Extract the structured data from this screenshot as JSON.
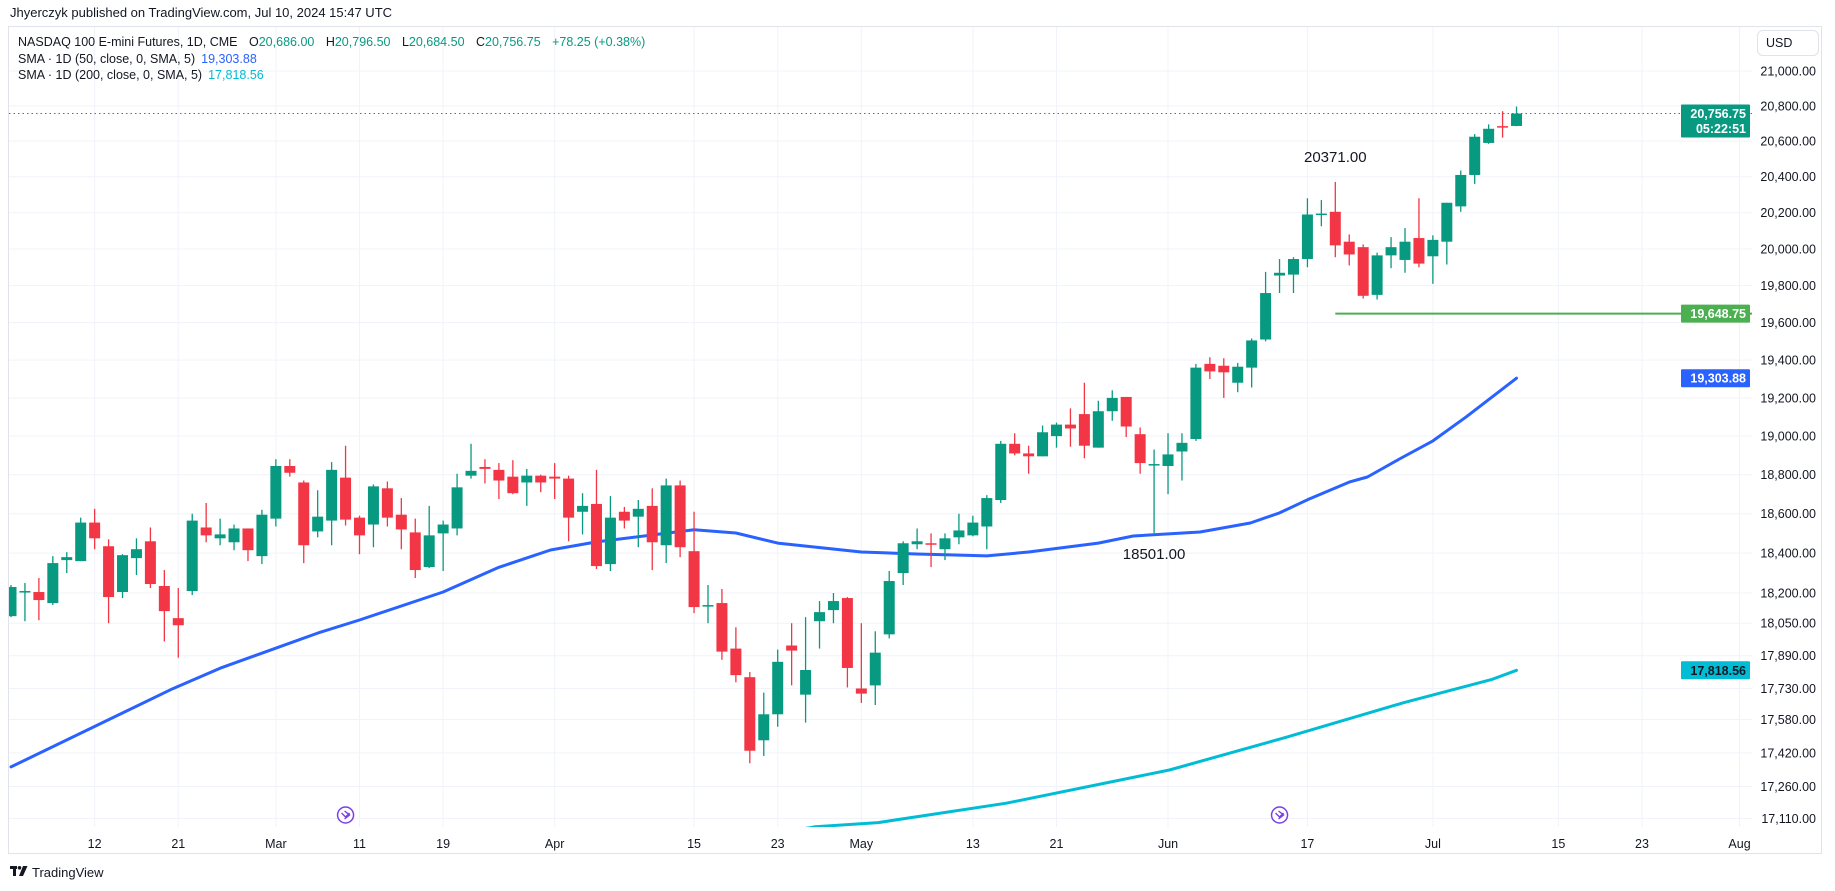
{
  "header": {
    "publisher": "Jhyerczyk published on TradingView.com, Jul 10, 2024 15:47 UTC"
  },
  "legend": {
    "symbol": "NASDAQ 100 E-mini Futures, 1D, CME",
    "o_label": "O",
    "open": "20,686.00",
    "h_label": "H",
    "high": "20,796.50",
    "l_label": "L",
    "low": "20,684.50",
    "c_label": "C",
    "close": "20,756.75",
    "change": "+78.25 (+0.38%)",
    "sma50_label": "SMA · 1D (50, close, 0, SMA, 5)",
    "sma50_value": "19,303.88",
    "sma200_label": "SMA · 1D (200, close, 0, SMA, 5)",
    "sma200_value": "17,818.56"
  },
  "currency_button": "USD",
  "footer": {
    "logo_mark": "TV",
    "logo_text": "TradingView"
  },
  "colors": {
    "up": "#089981",
    "down": "#f23645",
    "sma50": "#2962ff",
    "sma200": "#00bcd4",
    "hline": "#4caf50",
    "event": "#7b3fe4",
    "grid": "#f0f3fa"
  },
  "chart_data": {
    "type": "candlestick",
    "title": "NASDAQ 100 E-mini Futures, 1D, CME",
    "y_scale": "log",
    "ylim": [
      17110,
      21000
    ],
    "x_unit": "trading-day bar index (0 = Feb 2, 2024; 108 = Jul 10, 2024)",
    "ohlc": [
      [
        18085,
        18240,
        18080,
        18230
      ],
      [
        18205,
        18250,
        18060,
        18210
      ],
      [
        18205,
        18275,
        18065,
        18165
      ],
      [
        18150,
        18385,
        18140,
        18350
      ],
      [
        18365,
        18405,
        18300,
        18380
      ],
      [
        18360,
        18580,
        18360,
        18555
      ],
      [
        18555,
        18625,
        18420,
        18475
      ],
      [
        18435,
        18470,
        18050,
        18180
      ],
      [
        18205,
        18395,
        18175,
        18390
      ],
      [
        18375,
        18475,
        18290,
        18420
      ],
      [
        18460,
        18530,
        18225,
        18245
      ],
      [
        18235,
        18315,
        17960,
        18110
      ],
      [
        18075,
        18225,
        17880,
        18040
      ],
      [
        18210,
        18600,
        18190,
        18565
      ],
      [
        18530,
        18655,
        18455,
        18490
      ],
      [
        18475,
        18575,
        18440,
        18495
      ],
      [
        18455,
        18545,
        18415,
        18525
      ],
      [
        18525,
        18525,
        18360,
        18415
      ],
      [
        18385,
        18620,
        18345,
        18595
      ],
      [
        18575,
        18880,
        18535,
        18845
      ],
      [
        18845,
        18880,
        18790,
        18810
      ],
      [
        18760,
        18770,
        18350,
        18440
      ],
      [
        18510,
        18720,
        18480,
        18585
      ],
      [
        18565,
        18865,
        18440,
        18825
      ],
      [
        18785,
        18950,
        18540,
        18570
      ],
      [
        18580,
        18590,
        18395,
        18490
      ],
      [
        18545,
        18750,
        18430,
        18740
      ],
      [
        18730,
        18765,
        18535,
        18580
      ],
      [
        18595,
        18680,
        18420,
        18520
      ],
      [
        18505,
        18575,
        18275,
        18315
      ],
      [
        18330,
        18640,
        18325,
        18490
      ],
      [
        18500,
        18565,
        18310,
        18545
      ],
      [
        18525,
        18805,
        18490,
        18735
      ],
      [
        18795,
        18960,
        18780,
        18820
      ],
      [
        18840,
        18880,
        18755,
        18830
      ],
      [
        18825,
        18860,
        18675,
        18770
      ],
      [
        18790,
        18875,
        18700,
        18705
      ],
      [
        18760,
        18830,
        18640,
        18795
      ],
      [
        18795,
        18800,
        18710,
        18760
      ],
      [
        18790,
        18860,
        18675,
        18780
      ],
      [
        18780,
        18795,
        18460,
        18580
      ],
      [
        18610,
        18705,
        18495,
        18640
      ],
      [
        18650,
        18825,
        18320,
        18335
      ],
      [
        18345,
        18690,
        18310,
        18580
      ],
      [
        18610,
        18635,
        18525,
        18565
      ],
      [
        18585,
        18670,
        18430,
        18625
      ],
      [
        18640,
        18730,
        18315,
        18455
      ],
      [
        18440,
        18780,
        18350,
        18745
      ],
      [
        18745,
        18770,
        18380,
        18430
      ],
      [
        18410,
        18610,
        18100,
        18130
      ],
      [
        18135,
        18240,
        18050,
        18140
      ],
      [
        18150,
        18220,
        17870,
        17910
      ],
      [
        17925,
        18030,
        17760,
        17795
      ],
      [
        17785,
        17810,
        17370,
        17430
      ],
      [
        17480,
        17710,
        17405,
        17605
      ],
      [
        17605,
        17920,
        17545,
        17860
      ],
      [
        17940,
        18050,
        17745,
        17915
      ],
      [
        17700,
        18080,
        17565,
        17820
      ],
      [
        18060,
        18160,
        17925,
        18105
      ],
      [
        18115,
        18200,
        18050,
        18160
      ],
      [
        18175,
        18180,
        17735,
        17830
      ],
      [
        17730,
        18050,
        17660,
        17705
      ],
      [
        17745,
        18010,
        17650,
        17905
      ],
      [
        17995,
        18310,
        17975,
        18260
      ],
      [
        18300,
        18460,
        18240,
        18450
      ],
      [
        18445,
        18525,
        18420,
        18460
      ],
      [
        18450,
        18500,
        18330,
        18445
      ],
      [
        18420,
        18500,
        18365,
        18475
      ],
      [
        18480,
        18600,
        18445,
        18515
      ],
      [
        18490,
        18590,
        18485,
        18555
      ],
      [
        18535,
        18695,
        18420,
        18680
      ],
      [
        18670,
        18975,
        18655,
        18960
      ],
      [
        18960,
        19015,
        18900,
        18910
      ],
      [
        18910,
        18950,
        18805,
        18895
      ],
      [
        18895,
        19055,
        18895,
        19020
      ],
      [
        19000,
        19070,
        18940,
        19060
      ],
      [
        19060,
        19145,
        18945,
        19040
      ],
      [
        19115,
        19280,
        18885,
        18950
      ],
      [
        18940,
        19185,
        18940,
        19130
      ],
      [
        19130,
        19240,
        19080,
        19200
      ],
      [
        19205,
        19205,
        18995,
        19050
      ],
      [
        19010,
        19045,
        18805,
        18860
      ],
      [
        18850,
        18930,
        18501,
        18855
      ],
      [
        18845,
        19015,
        18700,
        18905
      ],
      [
        18920,
        19015,
        18770,
        18965
      ],
      [
        18985,
        19380,
        18975,
        19360
      ],
      [
        19380,
        19415,
        19300,
        19340
      ],
      [
        19370,
        19410,
        19200,
        19335
      ],
      [
        19280,
        19385,
        19230,
        19365
      ],
      [
        19360,
        19515,
        19255,
        19505
      ],
      [
        19510,
        19875,
        19500,
        19760
      ],
      [
        19855,
        19945,
        19760,
        19870
      ],
      [
        19860,
        19955,
        19760,
        19945
      ],
      [
        19945,
        20280,
        19900,
        20190
      ],
      [
        20190,
        20270,
        20125,
        20195
      ],
      [
        20205,
        20371,
        19955,
        20020
      ],
      [
        20040,
        20080,
        19910,
        19970
      ],
      [
        20010,
        20025,
        19730,
        19745
      ],
      [
        19750,
        19980,
        19725,
        19965
      ],
      [
        19965,
        20065,
        19895,
        20010
      ],
      [
        19940,
        20115,
        19870,
        20040
      ],
      [
        20060,
        20280,
        19900,
        19920
      ],
      [
        19960,
        20075,
        19810,
        20050
      ],
      [
        20040,
        20255,
        19915,
        20255
      ],
      [
        20235,
        20435,
        20205,
        20410
      ],
      [
        20410,
        20640,
        20360,
        20625
      ],
      [
        20590,
        20695,
        20585,
        20670
      ],
      [
        20685,
        20770,
        20620,
        20678.5
      ],
      [
        20686,
        20796.5,
        20684.5,
        20756.75
      ]
    ],
    "series": [
      {
        "name": "SMA 50",
        "points": [
          [
            0,
            17353
          ],
          [
            11.6,
            17729
          ],
          [
            15,
            17829
          ],
          [
            22,
            18001
          ],
          [
            25,
            18066
          ],
          [
            31,
            18205
          ],
          [
            35,
            18329
          ],
          [
            38.7,
            18416
          ],
          [
            42,
            18457
          ],
          [
            49,
            18518
          ],
          [
            52,
            18502
          ],
          [
            55,
            18451
          ],
          [
            61,
            18406
          ],
          [
            65,
            18396
          ],
          [
            70,
            18386
          ],
          [
            73,
            18406
          ],
          [
            78,
            18451
          ],
          [
            80.5,
            18487
          ],
          [
            85.3,
            18507
          ],
          [
            88.9,
            18553
          ],
          [
            91,
            18604
          ],
          [
            93,
            18671
          ],
          [
            96,
            18762
          ],
          [
            97.3,
            18788
          ],
          [
            99.6,
            18881
          ],
          [
            102,
            18975
          ],
          [
            104.4,
            19101
          ],
          [
            108,
            19303.88
          ]
        ]
      },
      {
        "name": "SMA 200",
        "points": [
          [
            50,
            16980
          ],
          [
            57.7,
            17071
          ],
          [
            62.2,
            17090
          ],
          [
            71.4,
            17181
          ],
          [
            83.1,
            17338
          ],
          [
            91.5,
            17495
          ],
          [
            99.9,
            17661
          ],
          [
            106.2,
            17773
          ],
          [
            108,
            17818.56
          ]
        ]
      }
    ],
    "y_ticks": [
      {
        "v": 21000,
        "label": "21,000.00"
      },
      {
        "v": 20800,
        "label": "20,800.00"
      },
      {
        "v": 20600,
        "label": "20,600.00"
      },
      {
        "v": 20400,
        "label": "20,400.00"
      },
      {
        "v": 20200,
        "label": "20,200.00"
      },
      {
        "v": 20000,
        "label": "20,000.00"
      },
      {
        "v": 19800,
        "label": "19,800.00"
      },
      {
        "v": 19600,
        "label": "19,600.00"
      },
      {
        "v": 19400,
        "label": "19,400.00"
      },
      {
        "v": 19200,
        "label": "19,200.00"
      },
      {
        "v": 19000,
        "label": "19,000.00"
      },
      {
        "v": 18800,
        "label": "18,800.00"
      },
      {
        "v": 18600,
        "label": "18,600.00"
      },
      {
        "v": 18400,
        "label": "18,400.00"
      },
      {
        "v": 18200,
        "label": "18,200.00"
      },
      {
        "v": 18050,
        "label": "18,050.00"
      },
      {
        "v": 17890,
        "label": "17,890.00"
      },
      {
        "v": 17730,
        "label": "17,730.00"
      },
      {
        "v": 17580,
        "label": "17,580.00"
      },
      {
        "v": 17420,
        "label": "17,420.00"
      },
      {
        "v": 17260,
        "label": "17,260.00"
      },
      {
        "v": 17110,
        "label": "17,110.00"
      }
    ],
    "x_ticks": [
      {
        "i": 6,
        "label": "12"
      },
      {
        "i": 12,
        "label": "21"
      },
      {
        "i": 19,
        "label": "Mar"
      },
      {
        "i": 25,
        "label": "11"
      },
      {
        "i": 31,
        "label": "19"
      },
      {
        "i": 39,
        "label": "Apr"
      },
      {
        "i": 49,
        "label": "15"
      },
      {
        "i": 55,
        "label": "23"
      },
      {
        "i": 61,
        "label": "May"
      },
      {
        "i": 69,
        "label": "13"
      },
      {
        "i": 75,
        "label": "21"
      },
      {
        "i": 83,
        "label": "Jun"
      },
      {
        "i": 93,
        "label": "17"
      },
      {
        "i": 102,
        "label": "Jul"
      },
      {
        "i": 111,
        "label": "15"
      },
      {
        "i": 117,
        "label": "23"
      },
      {
        "i": 124,
        "label": "Aug"
      }
    ],
    "annotations": [
      {
        "i": 95,
        "value": 20371,
        "label": "20371.00",
        "position": "above"
      },
      {
        "i": 82,
        "value": 18501,
        "label": "18501.00",
        "position": "below"
      }
    ],
    "horizontal_line": {
      "value": 19648.75,
      "label": "19,648.75",
      "start_i": 95
    },
    "last_price": {
      "value": 20756.75,
      "label": "20,756.75",
      "countdown": "05:22:51"
    },
    "sma_badges": [
      {
        "value": 19303.88,
        "label": "19,303.88",
        "series": "SMA 50"
      },
      {
        "value": 17818.56,
        "label": "17,818.56",
        "series": "SMA 200"
      }
    ],
    "event_markers": [
      {
        "i": 24
      },
      {
        "i": 91
      }
    ],
    "grid": true
  }
}
